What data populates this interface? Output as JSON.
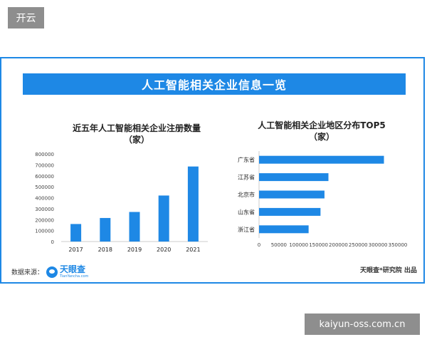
{
  "corner_tag": "开云",
  "banner_title": "人工智能相关企业信息一览",
  "chart_data": [
    {
      "type": "bar",
      "title": "近五年人工智能相关企业注册数量",
      "subtitle": "（家）",
      "categories": [
        "2017",
        "2018",
        "2019",
        "2020",
        "2021"
      ],
      "values": [
        160000,
        215000,
        270000,
        420000,
        685000
      ],
      "ylim": [
        0,
        800000
      ],
      "yticks": [
        "0",
        "100000",
        "200000",
        "300000",
        "400000",
        "500000",
        "600000",
        "700000",
        "800000"
      ],
      "yticks_values": [
        0,
        100000,
        200000,
        300000,
        400000,
        500000,
        600000,
        700000,
        800000
      ],
      "grid": false,
      "color": "#1e88e5"
    },
    {
      "type": "bar",
      "orientation": "horizontal",
      "title": "人工智能相关企业地区分布TOP5",
      "subtitle": "（家）",
      "categories": [
        "广东省",
        "江苏省",
        "北京市",
        "山东省",
        "浙江省"
      ],
      "values": [
        315000,
        175000,
        165000,
        155000,
        125000
      ],
      "xlim": [
        0,
        350000
      ],
      "xticks": [
        "0",
        "50000",
        "100000",
        "150000",
        "200000",
        "250000",
        "300000",
        "350000"
      ],
      "xticks_values": [
        0,
        50000,
        100000,
        150000,
        200000,
        250000,
        300000,
        350000
      ],
      "grid": false,
      "color": "#1e88e5"
    }
  ],
  "footer": {
    "source_label": "数据来源：",
    "logo_name": "天眼查",
    "logo_sub": "TianYancha.com",
    "credit": "天眼查*研究院 出品"
  },
  "watermark": "kaiyun-oss.com.cn"
}
